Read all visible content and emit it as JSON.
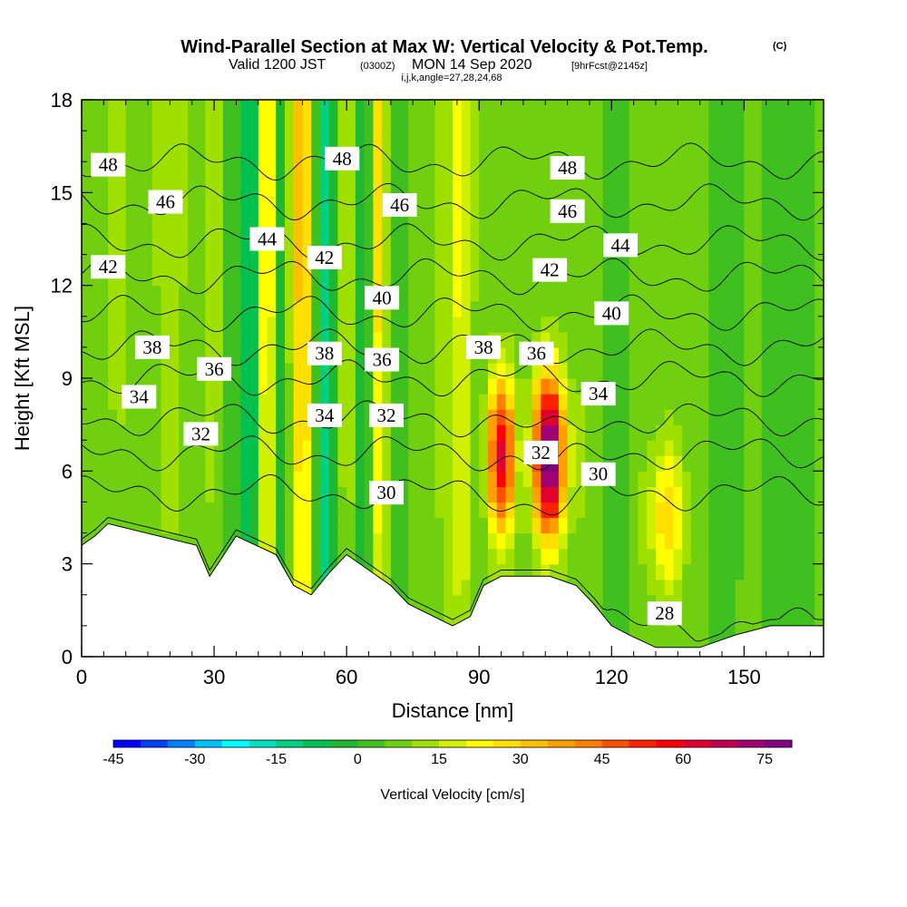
{
  "header": {
    "title": "Wind-Parallel Section at Max W: Vertical Velocity & Pot.Temp.",
    "title_mark": "(C)",
    "line2_valid": "Valid 1200 JST",
    "line2_utc": "(0300Z)",
    "line2_date": "MON 14 Sep 2020",
    "line2_fcst": "[9hrFcst@2145z]",
    "line3": "i,j,k,angle=27,28,24,68"
  },
  "chart_data": {
    "type": "heatmap",
    "xlabel": "Distance [nm]",
    "ylabel": "Height [Kft MSL]",
    "xlim": [
      0,
      168
    ],
    "ylim": [
      0,
      18
    ],
    "x_ticks": [
      "0",
      "30",
      "60",
      "90",
      "120",
      "150"
    ],
    "x_tick_values": [
      0,
      30,
      60,
      90,
      120,
      150
    ],
    "y_ticks": [
      "0",
      "3",
      "6",
      "9",
      "12",
      "15",
      "18"
    ],
    "y_tick_values": [
      0,
      3,
      6,
      9,
      12,
      15,
      18
    ],
    "colorbar": {
      "label": "Vertical Velocity [cm/s]",
      "range": [
        -45,
        80
      ],
      "tick_labels": [
        "-45",
        "-30",
        "-15",
        "0",
        "15",
        "30",
        "45",
        "60",
        "75"
      ],
      "tick_values": [
        -45,
        -30,
        -15,
        0,
        15,
        30,
        45,
        60,
        75
      ],
      "colors": [
        "#0000ff",
        "#0040ff",
        "#0080ff",
        "#00c0ff",
        "#00ffff",
        "#00e0c0",
        "#00d080",
        "#00c050",
        "#20b830",
        "#40c020",
        "#70d010",
        "#a0e000",
        "#d0f000",
        "#ffff00",
        "#ffe000",
        "#ffc000",
        "#ffa000",
        "#ff8000",
        "#ff5000",
        "#ff2000",
        "#ff0000",
        "#e00030",
        "#c00050",
        "#a00070",
        "#800080"
      ]
    },
    "velocity_columns": [
      {
        "x": 2,
        "w": 0
      },
      {
        "x": 8,
        "w": 5
      },
      {
        "x": 14,
        "w": 2
      },
      {
        "x": 20,
        "w": 6
      },
      {
        "x": 26,
        "w": 2
      },
      {
        "x": 30,
        "w": 6
      },
      {
        "x": 34,
        "w": -3
      },
      {
        "x": 38,
        "w": -18
      },
      {
        "x": 42,
        "w": 22
      },
      {
        "x": 45,
        "w": -8
      },
      {
        "x": 50,
        "w": 28
      },
      {
        "x": 55,
        "w": -20
      },
      {
        "x": 60,
        "w": 8
      },
      {
        "x": 64,
        "w": -10
      },
      {
        "x": 67,
        "w": 20
      },
      {
        "x": 71,
        "w": -3
      },
      {
        "x": 76,
        "w": 0
      },
      {
        "x": 82,
        "w": 6
      },
      {
        "x": 86,
        "w": 16
      },
      {
        "x": 90,
        "w": 2
      },
      {
        "x": 95,
        "w": 55
      },
      {
        "x": 100,
        "w": 5
      },
      {
        "x": 106,
        "w": 78
      },
      {
        "x": 111,
        "w": 10
      },
      {
        "x": 116,
        "w": 0
      },
      {
        "x": 122,
        "w": -3
      },
      {
        "x": 127,
        "w": 6
      },
      {
        "x": 133,
        "w": 24
      },
      {
        "x": 138,
        "w": 4
      },
      {
        "x": 145,
        "w": -3
      },
      {
        "x": 152,
        "w": 0
      },
      {
        "x": 158,
        "w": -5
      },
      {
        "x": 163,
        "w": -2
      },
      {
        "x": 168,
        "w": 0
      }
    ],
    "terrain": [
      [
        0,
        3.6
      ],
      [
        3,
        3.9
      ],
      [
        6,
        4.3
      ],
      [
        26,
        3.6
      ],
      [
        29,
        2.6
      ],
      [
        35,
        3.9
      ],
      [
        44,
        3.3
      ],
      [
        48,
        2.3
      ],
      [
        52,
        2.0
      ],
      [
        56,
        2.7
      ],
      [
        60,
        3.3
      ],
      [
        66,
        2.7
      ],
      [
        70,
        2.3
      ],
      [
        74,
        1.7
      ],
      [
        84,
        1.0
      ],
      [
        88,
        1.3
      ],
      [
        91,
        2.3
      ],
      [
        95,
        2.6
      ],
      [
        106,
        2.6
      ],
      [
        112,
        2.3
      ],
      [
        116,
        1.7
      ],
      [
        120,
        1.0
      ],
      [
        124,
        0.7
      ],
      [
        130,
        0.3
      ],
      [
        140,
        0.3
      ],
      [
        148,
        0.7
      ],
      [
        156,
        1.0
      ],
      [
        168,
        1.0
      ]
    ],
    "isentropes": [
      {
        "theta": 28,
        "label": "28",
        "base": 1.0,
        "slope": 0.0
      },
      {
        "theta": 30,
        "label": "30",
        "base": 5.3,
        "slope": 0.0
      },
      {
        "theta": 32,
        "label": "32",
        "base": 6.6,
        "slope": 0.0
      },
      {
        "theta": 34,
        "label": "34",
        "base": 7.7,
        "slope": 0.0
      },
      {
        "theta": 36,
        "label": "36",
        "base": 9.0,
        "slope": 0.0
      },
      {
        "theta": 38,
        "label": "38",
        "base": 10.0,
        "slope": 0.0
      },
      {
        "theta": 40,
        "label": "40",
        "base": 11.1,
        "slope": 0.0
      },
      {
        "theta": 42,
        "label": "42",
        "base": 12.3,
        "slope": 0.0
      },
      {
        "theta": 44,
        "label": "44",
        "base": 13.4,
        "slope": 0.0
      },
      {
        "theta": 46,
        "label": "46",
        "base": 14.7,
        "slope": 0.0
      },
      {
        "theta": 48,
        "label": "48",
        "base": 16.0,
        "slope": 0.0
      }
    ],
    "contour_labels": [
      {
        "text": "48",
        "x": 6,
        "y": 15.9
      },
      {
        "text": "46",
        "x": 19,
        "y": 14.7
      },
      {
        "text": "44",
        "x": 42,
        "y": 13.5
      },
      {
        "text": "48",
        "x": 59,
        "y": 16.1
      },
      {
        "text": "46",
        "x": 72,
        "y": 14.6
      },
      {
        "text": "48",
        "x": 110,
        "y": 15.8
      },
      {
        "text": "46",
        "x": 110,
        "y": 14.4
      },
      {
        "text": "44",
        "x": 122,
        "y": 13.3
      },
      {
        "text": "42",
        "x": 6,
        "y": 12.6
      },
      {
        "text": "42",
        "x": 55,
        "y": 12.9
      },
      {
        "text": "42",
        "x": 106,
        "y": 12.5
      },
      {
        "text": "40",
        "x": 68,
        "y": 11.6
      },
      {
        "text": "40",
        "x": 120,
        "y": 11.1
      },
      {
        "text": "38",
        "x": 16,
        "y": 10.0
      },
      {
        "text": "38",
        "x": 55,
        "y": 9.8
      },
      {
        "text": "38",
        "x": 91,
        "y": 10.0
      },
      {
        "text": "36",
        "x": 103,
        "y": 9.8
      },
      {
        "text": "36",
        "x": 30,
        "y": 9.3
      },
      {
        "text": "36",
        "x": 68,
        "y": 9.6
      },
      {
        "text": "34",
        "x": 13,
        "y": 8.4
      },
      {
        "text": "34",
        "x": 117,
        "y": 8.5
      },
      {
        "text": "34",
        "x": 55,
        "y": 7.8
      },
      {
        "text": "32",
        "x": 27,
        "y": 7.2
      },
      {
        "text": "32",
        "x": 69,
        "y": 7.8
      },
      {
        "text": "32",
        "x": 104,
        "y": 6.6
      },
      {
        "text": "30",
        "x": 69,
        "y": 5.3
      },
      {
        "text": "30",
        "x": 117,
        "y": 5.9
      },
      {
        "text": "28",
        "x": 132,
        "y": 1.4
      }
    ]
  }
}
